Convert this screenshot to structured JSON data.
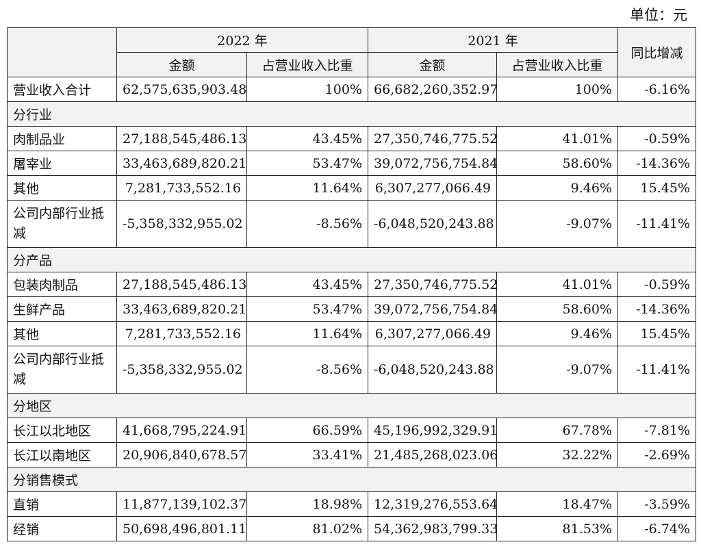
{
  "unit_label": "单位：元",
  "header": {
    "year_2022": "2022 年",
    "year_2021": "2021 年",
    "amount": "金额",
    "ratio": "占营业收入比重",
    "yoy": "同比增减"
  },
  "rows": [
    {
      "type": "data",
      "label": "营业收入合计",
      "a2022": "62,575,635,903.48",
      "r2022": "100%",
      "a2021": "66,682,260,352.97",
      "r2021": "100%",
      "yoy": "-6.16%"
    },
    {
      "type": "section",
      "label": "分行业"
    },
    {
      "type": "data",
      "label": "肉制品业",
      "a2022": "27,188,545,486.13",
      "r2022": "43.45%",
      "a2021": "27,350,746,775.52",
      "r2021": "41.01%",
      "yoy": "-0.59%"
    },
    {
      "type": "data",
      "label": "屠宰业",
      "a2022": "33,463,689,820.21",
      "r2022": "53.47%",
      "a2021": "39,072,756,754.84",
      "r2021": "58.60%",
      "yoy": "-14.36%"
    },
    {
      "type": "data",
      "label": "其他",
      "a2022": "7,281,733,552.16",
      "r2022": "11.64%",
      "a2021": "6,307,277,066.49",
      "r2021": "9.46%",
      "yoy": "15.45%"
    },
    {
      "type": "data",
      "tall": true,
      "label": "公司内部行业抵减",
      "a2022": "-5,358,332,955.02",
      "r2022": "-8.56%",
      "a2021": "-6,048,520,243.88",
      "r2021": "-9.07%",
      "yoy": "-11.41%"
    },
    {
      "type": "section",
      "label": "分产品"
    },
    {
      "type": "data",
      "label": "包装肉制品",
      "a2022": "27,188,545,486.13",
      "r2022": "43.45%",
      "a2021": "27,350,746,775.52",
      "r2021": "41.01%",
      "yoy": "-0.59%"
    },
    {
      "type": "data",
      "label": "生鲜产品",
      "a2022": "33,463,689,820.21",
      "r2022": "53.47%",
      "a2021": "39,072,756,754.84",
      "r2021": "58.60%",
      "yoy": "-14.36%"
    },
    {
      "type": "data",
      "label": "其他",
      "a2022": "7,281,733,552.16",
      "r2022": "11.64%",
      "a2021": "6,307,277,066.49",
      "r2021": "9.46%",
      "yoy": "15.45%"
    },
    {
      "type": "data",
      "tall": true,
      "label": "公司内部行业抵减",
      "a2022": "-5,358,332,955.02",
      "r2022": "-8.56%",
      "a2021": "-6,048,520,243.88",
      "r2021": "-9.07%",
      "yoy": "-11.41%"
    },
    {
      "type": "section",
      "label": "分地区"
    },
    {
      "type": "data",
      "label": "长江以北地区",
      "a2022": "41,668,795,224.91",
      "r2022": "66.59%",
      "a2021": "45,196,992,329.91",
      "r2021": "67.78%",
      "yoy": "-7.81%"
    },
    {
      "type": "data",
      "label": "长江以南地区",
      "a2022": "20,906,840,678.57",
      "r2022": "33.41%",
      "a2021": "21,485,268,023.06",
      "r2021": "32.22%",
      "yoy": "-2.69%"
    },
    {
      "type": "section",
      "label": "分销售模式"
    },
    {
      "type": "data",
      "label": "直销",
      "a2022": "11,877,139,102.37",
      "r2022": "18.98%",
      "a2021": "12,319,276,553.64",
      "r2021": "18.47%",
      "yoy": "-3.59%"
    },
    {
      "type": "data",
      "label": "经销",
      "a2022": "50,698,496,801.11",
      "r2022": "81.02%",
      "a2021": "54,362,983,799.33",
      "r2021": "81.53%",
      "yoy": "-6.74%"
    }
  ]
}
